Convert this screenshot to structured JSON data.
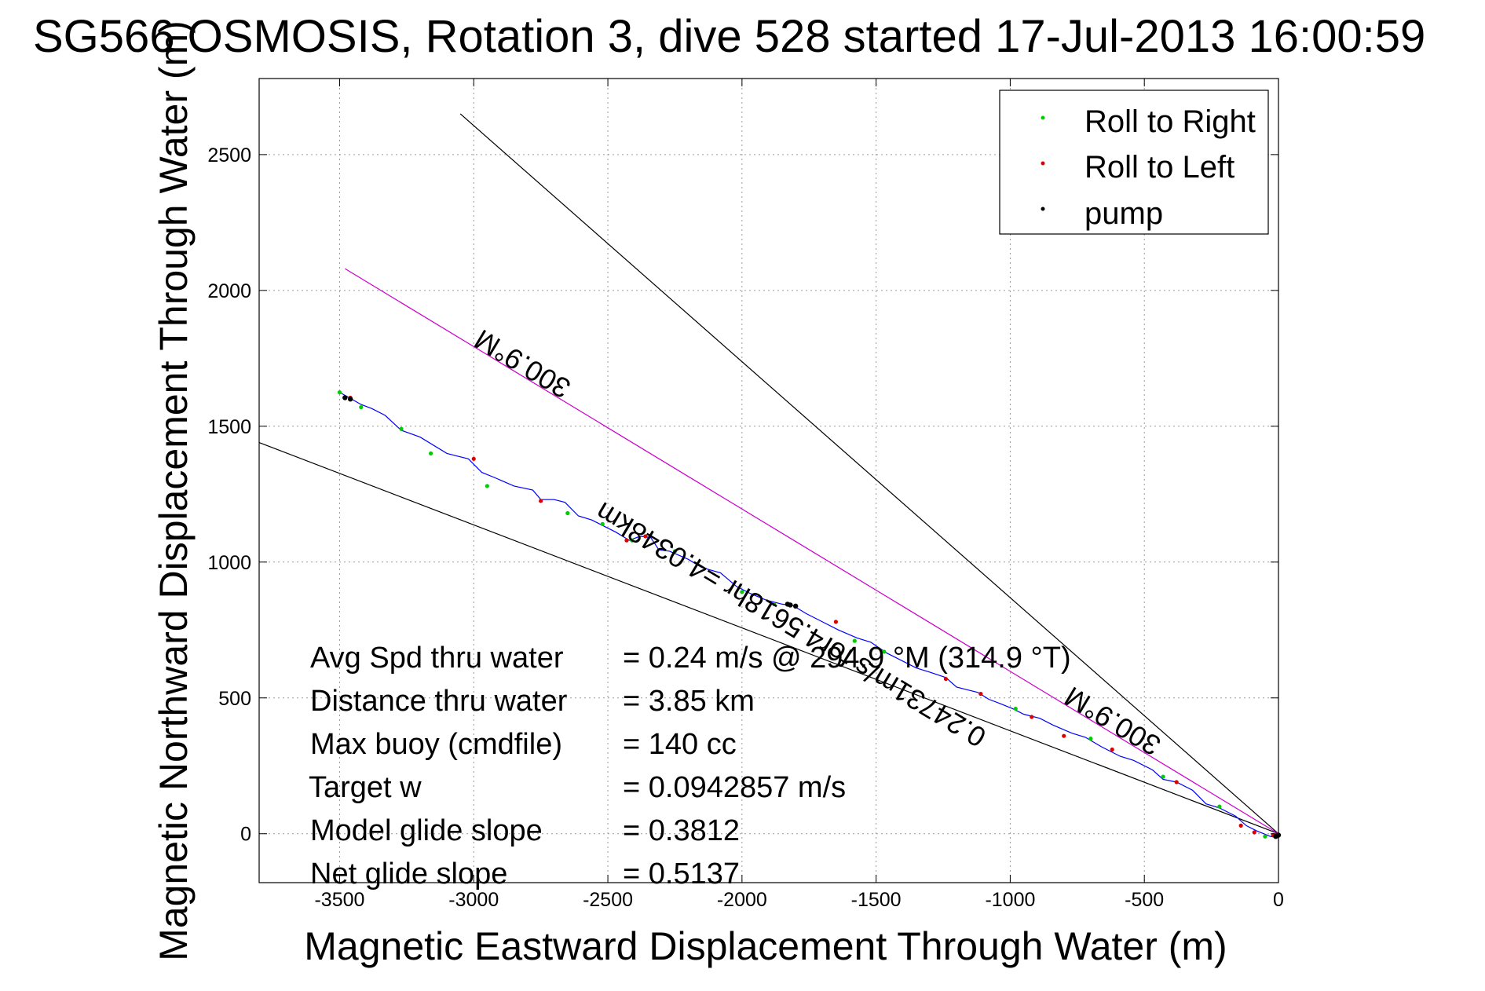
{
  "chart_data": {
    "type": "line",
    "title": "SG566 OSMOSIS, Rotation 3, dive 528 started 17-Jul-2013 16:00:59",
    "xlabel": "Magnetic Eastward Displacement Through Water (m)",
    "ylabel": "Magnetic Northward Displacement Through Water (m)",
    "xlim": [
      -3800,
      0
    ],
    "ylim": [
      -180,
      2780
    ],
    "xticks": [
      -3500,
      -3000,
      -2500,
      -2000,
      -1500,
      -1000,
      -500,
      0
    ],
    "yticks": [
      0,
      500,
      1000,
      1500,
      2000,
      2500
    ],
    "grid": true,
    "legend": {
      "placement": "top-right",
      "entries": [
        {
          "label": "Roll to Right",
          "color": "#00cc00"
        },
        {
          "label": "Roll to Left",
          "color": "#dd0000"
        },
        {
          "label": "pump",
          "color": "#000000"
        }
      ]
    },
    "track": {
      "color": "#0000ff",
      "points": [
        [
          -3500,
          1625
        ],
        [
          -3420,
          1580
        ],
        [
          -3380,
          1565
        ],
        [
          -3330,
          1540
        ],
        [
          -3270,
          1485
        ],
        [
          -3200,
          1460
        ],
        [
          -3100,
          1400
        ],
        [
          -3060,
          1390
        ],
        [
          -3020,
          1380
        ],
        [
          -2970,
          1330
        ],
        [
          -2920,
          1310
        ],
        [
          -2850,
          1280
        ],
        [
          -2780,
          1265
        ],
        [
          -2750,
          1230
        ],
        [
          -2700,
          1230
        ],
        [
          -2660,
          1220
        ],
        [
          -2610,
          1170
        ],
        [
          -2560,
          1155
        ],
        [
          -2510,
          1130
        ],
        [
          -2470,
          1110
        ],
        [
          -2420,
          1080
        ],
        [
          -2380,
          1095
        ],
        [
          -2340,
          1090
        ],
        [
          -2310,
          1045
        ],
        [
          -2270,
          1040
        ],
        [
          -2200,
          1010
        ],
        [
          -2150,
          980
        ],
        [
          -2080,
          960
        ],
        [
          -2020,
          910
        ],
        [
          -1970,
          885
        ],
        [
          -1910,
          860
        ],
        [
          -1850,
          845
        ],
        [
          -1810,
          840
        ],
        [
          -1760,
          810
        ],
        [
          -1700,
          780
        ],
        [
          -1640,
          750
        ],
        [
          -1570,
          720
        ],
        [
          -1520,
          705
        ],
        [
          -1460,
          665
        ],
        [
          -1410,
          640
        ],
        [
          -1350,
          610
        ],
        [
          -1300,
          595
        ],
        [
          -1240,
          575
        ],
        [
          -1200,
          540
        ],
        [
          -1160,
          530
        ],
        [
          -1120,
          520
        ],
        [
          -1080,
          495
        ],
        [
          -1040,
          480
        ],
        [
          -990,
          460
        ],
        [
          -950,
          440
        ],
        [
          -890,
          425
        ],
        [
          -840,
          400
        ],
        [
          -770,
          370
        ],
        [
          -720,
          355
        ],
        [
          -660,
          320
        ],
        [
          -590,
          285
        ],
        [
          -540,
          270
        ],
        [
          -470,
          235
        ],
        [
          -430,
          200
        ],
        [
          -380,
          190
        ],
        [
          -320,
          160
        ],
        [
          -270,
          110
        ],
        [
          -220,
          95
        ],
        [
          -160,
          65
        ],
        [
          -120,
          30
        ],
        [
          -80,
          10
        ],
        [
          -30,
          -10
        ],
        [
          0,
          -15
        ]
      ]
    },
    "roll_right_points": [
      [
        -3500,
        1625
      ],
      [
        -3420,
        1570
      ],
      [
        -3270,
        1490
      ],
      [
        -3160,
        1400
      ],
      [
        -2950,
        1280
      ],
      [
        -2650,
        1180
      ],
      [
        -2520,
        1140
      ],
      [
        -2410,
        1080
      ],
      [
        -2250,
        1040
      ],
      [
        -2000,
        890
      ],
      [
        -1880,
        845
      ],
      [
        -1580,
        710
      ],
      [
        -1470,
        670
      ],
      [
        -980,
        460
      ],
      [
        -700,
        350
      ],
      [
        -430,
        210
      ],
      [
        -220,
        100
      ],
      [
        -50,
        -10
      ]
    ],
    "roll_left_points": [
      [
        -3460,
        1605
      ],
      [
        -3000,
        1380
      ],
      [
        -2750,
        1225
      ],
      [
        -2430,
        1080
      ],
      [
        -2360,
        1095
      ],
      [
        -1650,
        780
      ],
      [
        -1240,
        570
      ],
      [
        -1110,
        515
      ],
      [
        -920,
        430
      ],
      [
        -800,
        360
      ],
      [
        -620,
        310
      ],
      [
        -380,
        190
      ],
      [
        -140,
        30
      ],
      [
        -90,
        5
      ],
      [
        -20,
        -5
      ]
    ],
    "pump_points": [
      [
        -3480,
        1605
      ],
      [
        -3460,
        1600
      ],
      [
        -1830,
        845
      ],
      [
        -1820,
        842
      ],
      [
        -1800,
        838
      ],
      [
        -10,
        -10
      ],
      [
        0,
        -5
      ]
    ],
    "reference_lines": [
      {
        "color": "#000000",
        "points": [
          [
            -3800,
            1440
          ],
          [
            0,
            0
          ]
        ]
      },
      {
        "color": "#000000",
        "points": [
          [
            -3050,
            2650
          ],
          [
            0,
            0
          ]
        ]
      },
      {
        "color": "#cc00cc",
        "points": [
          [
            -3480,
            2080
          ],
          [
            0,
            0
          ]
        ]
      }
    ],
    "annotations": [
      {
        "text": "300.9°M",
        "x": -2800,
        "y": 1760,
        "angle": 30.9
      },
      {
        "text": "300.9°M",
        "x": -600,
        "y": 445,
        "angle": 30.9
      },
      {
        "text": "0.24731m/s for4.5618hr =4.0348km",
        "x": -1800,
        "y": 800,
        "angle": 30.9
      }
    ]
  },
  "stats": [
    {
      "label": "Avg Spd thru water",
      "value": "=  0.24 m/s @ 294.9 °M (314.9 °T)"
    },
    {
      "label": "Distance thru water",
      "value": "=  3.85 km"
    },
    {
      "label": "Max buoy (cmdfile)",
      "value": "= 140 cc"
    },
    {
      "label": "Target w",
      "value": "= 0.0942857 m/s"
    },
    {
      "label": "Model glide slope",
      "value": "= 0.3812"
    },
    {
      "label": "Net glide slope",
      "value": "= 0.5137"
    }
  ]
}
